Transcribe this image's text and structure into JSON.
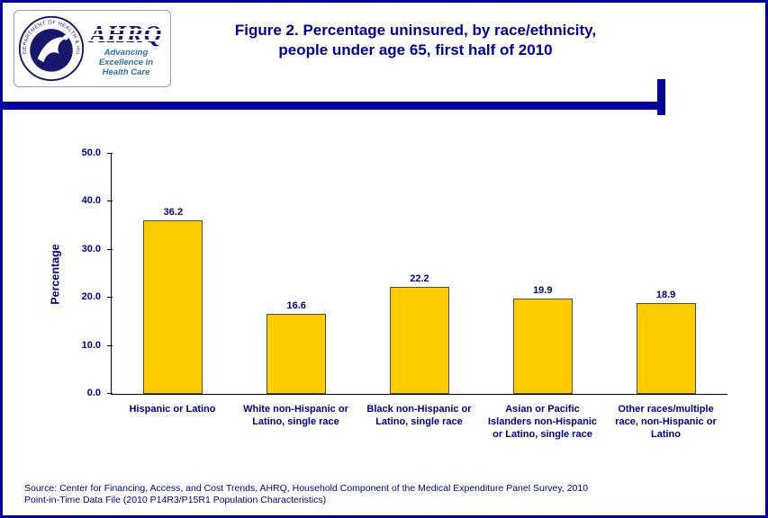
{
  "header": {
    "hhs_seal_text": "DEPARTMENT OF HEALTH & HUMAN SERVICES • USA",
    "logo": {
      "ahrq_text": "AHRQ",
      "tagline": [
        "Advancing",
        "Excellence in",
        "Health Care"
      ]
    },
    "title_line1": "Figure 2. Percentage uninsured, by race/ethnicity,",
    "title_line2": "people under age 65, first half of 2010"
  },
  "chart_data": {
    "type": "bar",
    "title": "Figure 2. Percentage uninsured, by race/ethnicity, people under age 65, first half of 2010",
    "categories": [
      "Hispanic or Latino",
      "White non-Hispanic or Latino, single race",
      "Black non-Hispanic or Latino, single race",
      "Asian or Pacific Islanders non-Hispanic or Latino, single race",
      "Other races/multiple race, non-Hispanic or Latino"
    ],
    "values": [
      36.2,
      16.6,
      22.2,
      19.9,
      18.9
    ],
    "xlabel": "",
    "ylabel": "Percentage",
    "ylim": [
      0,
      50
    ],
    "ytick_labels": [
      "0.0",
      "10.0",
      "20.0",
      "30.0",
      "40.0",
      "50.0"
    ],
    "bar_color": "#FFCC00",
    "grid": false,
    "legend": false
  },
  "footer": {
    "source_line1": "Source: Center for Financing, Access, and Cost Trends, AHRQ, Household Component of the Medical Expenditure Panel Survey, 2010",
    "source_line2": "Point-in-Time Data File (2010 P14R3/P15R1 Population Characteristics)"
  },
  "colors": {
    "navy": "#000099",
    "gold": "#FFCC00"
  }
}
